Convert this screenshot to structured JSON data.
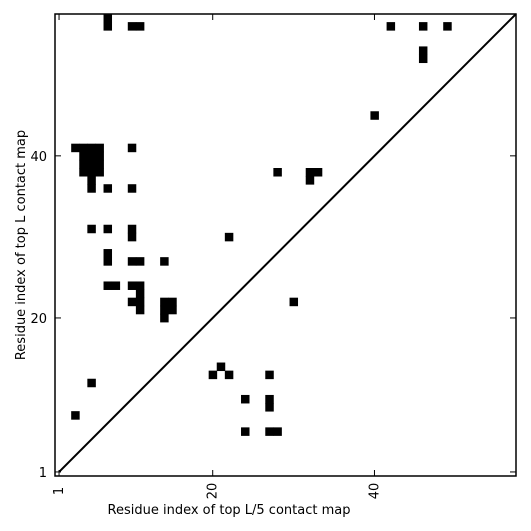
{
  "chart_data": {
    "type": "heatmap",
    "title": "",
    "xlabel": "Residue index of top L/5 contact map",
    "ylabel": "Residue index of top L contact map",
    "xlim": [
      0.5,
      57.5
    ],
    "ylim": [
      0.5,
      57.5
    ],
    "xticks": [
      1,
      20,
      40
    ],
    "yticks": [
      1,
      20,
      40
    ],
    "diagonal": true,
    "cell_color": "#000000",
    "upper_cells": [
      [
        7,
        56
      ],
      [
        7,
        57
      ],
      [
        10,
        56
      ],
      [
        11,
        56
      ],
      [
        42,
        56
      ],
      [
        46,
        56
      ],
      [
        49,
        56
      ],
      [
        46,
        52
      ],
      [
        46,
        53
      ],
      [
        40,
        45
      ],
      [
        3,
        41
      ],
      [
        4,
        41
      ],
      [
        5,
        41
      ],
      [
        6,
        41
      ],
      [
        10,
        41
      ],
      [
        4,
        40
      ],
      [
        5,
        40
      ],
      [
        6,
        40
      ],
      [
        4,
        39
      ],
      [
        5,
        39
      ],
      [
        6,
        39
      ],
      [
        4,
        38
      ],
      [
        5,
        38
      ],
      [
        6,
        38
      ],
      [
        5,
        37
      ],
      [
        7,
        36
      ],
      [
        10,
        36
      ],
      [
        5,
        36
      ],
      [
        28,
        38
      ],
      [
        32,
        38
      ],
      [
        33,
        38
      ],
      [
        32,
        37
      ],
      [
        5,
        31
      ],
      [
        7,
        31
      ],
      [
        10,
        31
      ],
      [
        10,
        30
      ],
      [
        22,
        30
      ],
      [
        7,
        28
      ],
      [
        7,
        27
      ],
      [
        10,
        27
      ],
      [
        11,
        27
      ],
      [
        14,
        27
      ],
      [
        7,
        24
      ],
      [
        8,
        24
      ],
      [
        10,
        24
      ],
      [
        11,
        24
      ],
      [
        11,
        23
      ],
      [
        10,
        22
      ],
      [
        11,
        22
      ],
      [
        14,
        22
      ],
      [
        15,
        22
      ],
      [
        30,
        22
      ],
      [
        11,
        21
      ],
      [
        14,
        21
      ],
      [
        15,
        21
      ],
      [
        14,
        20
      ]
    ],
    "lower_cells": [
      [
        21,
        14
      ],
      [
        20,
        13
      ],
      [
        22,
        13
      ],
      [
        27,
        13
      ],
      [
        5,
        12
      ],
      [
        24,
        10
      ],
      [
        27,
        10
      ],
      [
        27,
        9
      ],
      [
        3,
        8
      ],
      [
        24,
        6
      ],
      [
        27,
        6
      ],
      [
        28,
        6
      ]
    ]
  }
}
